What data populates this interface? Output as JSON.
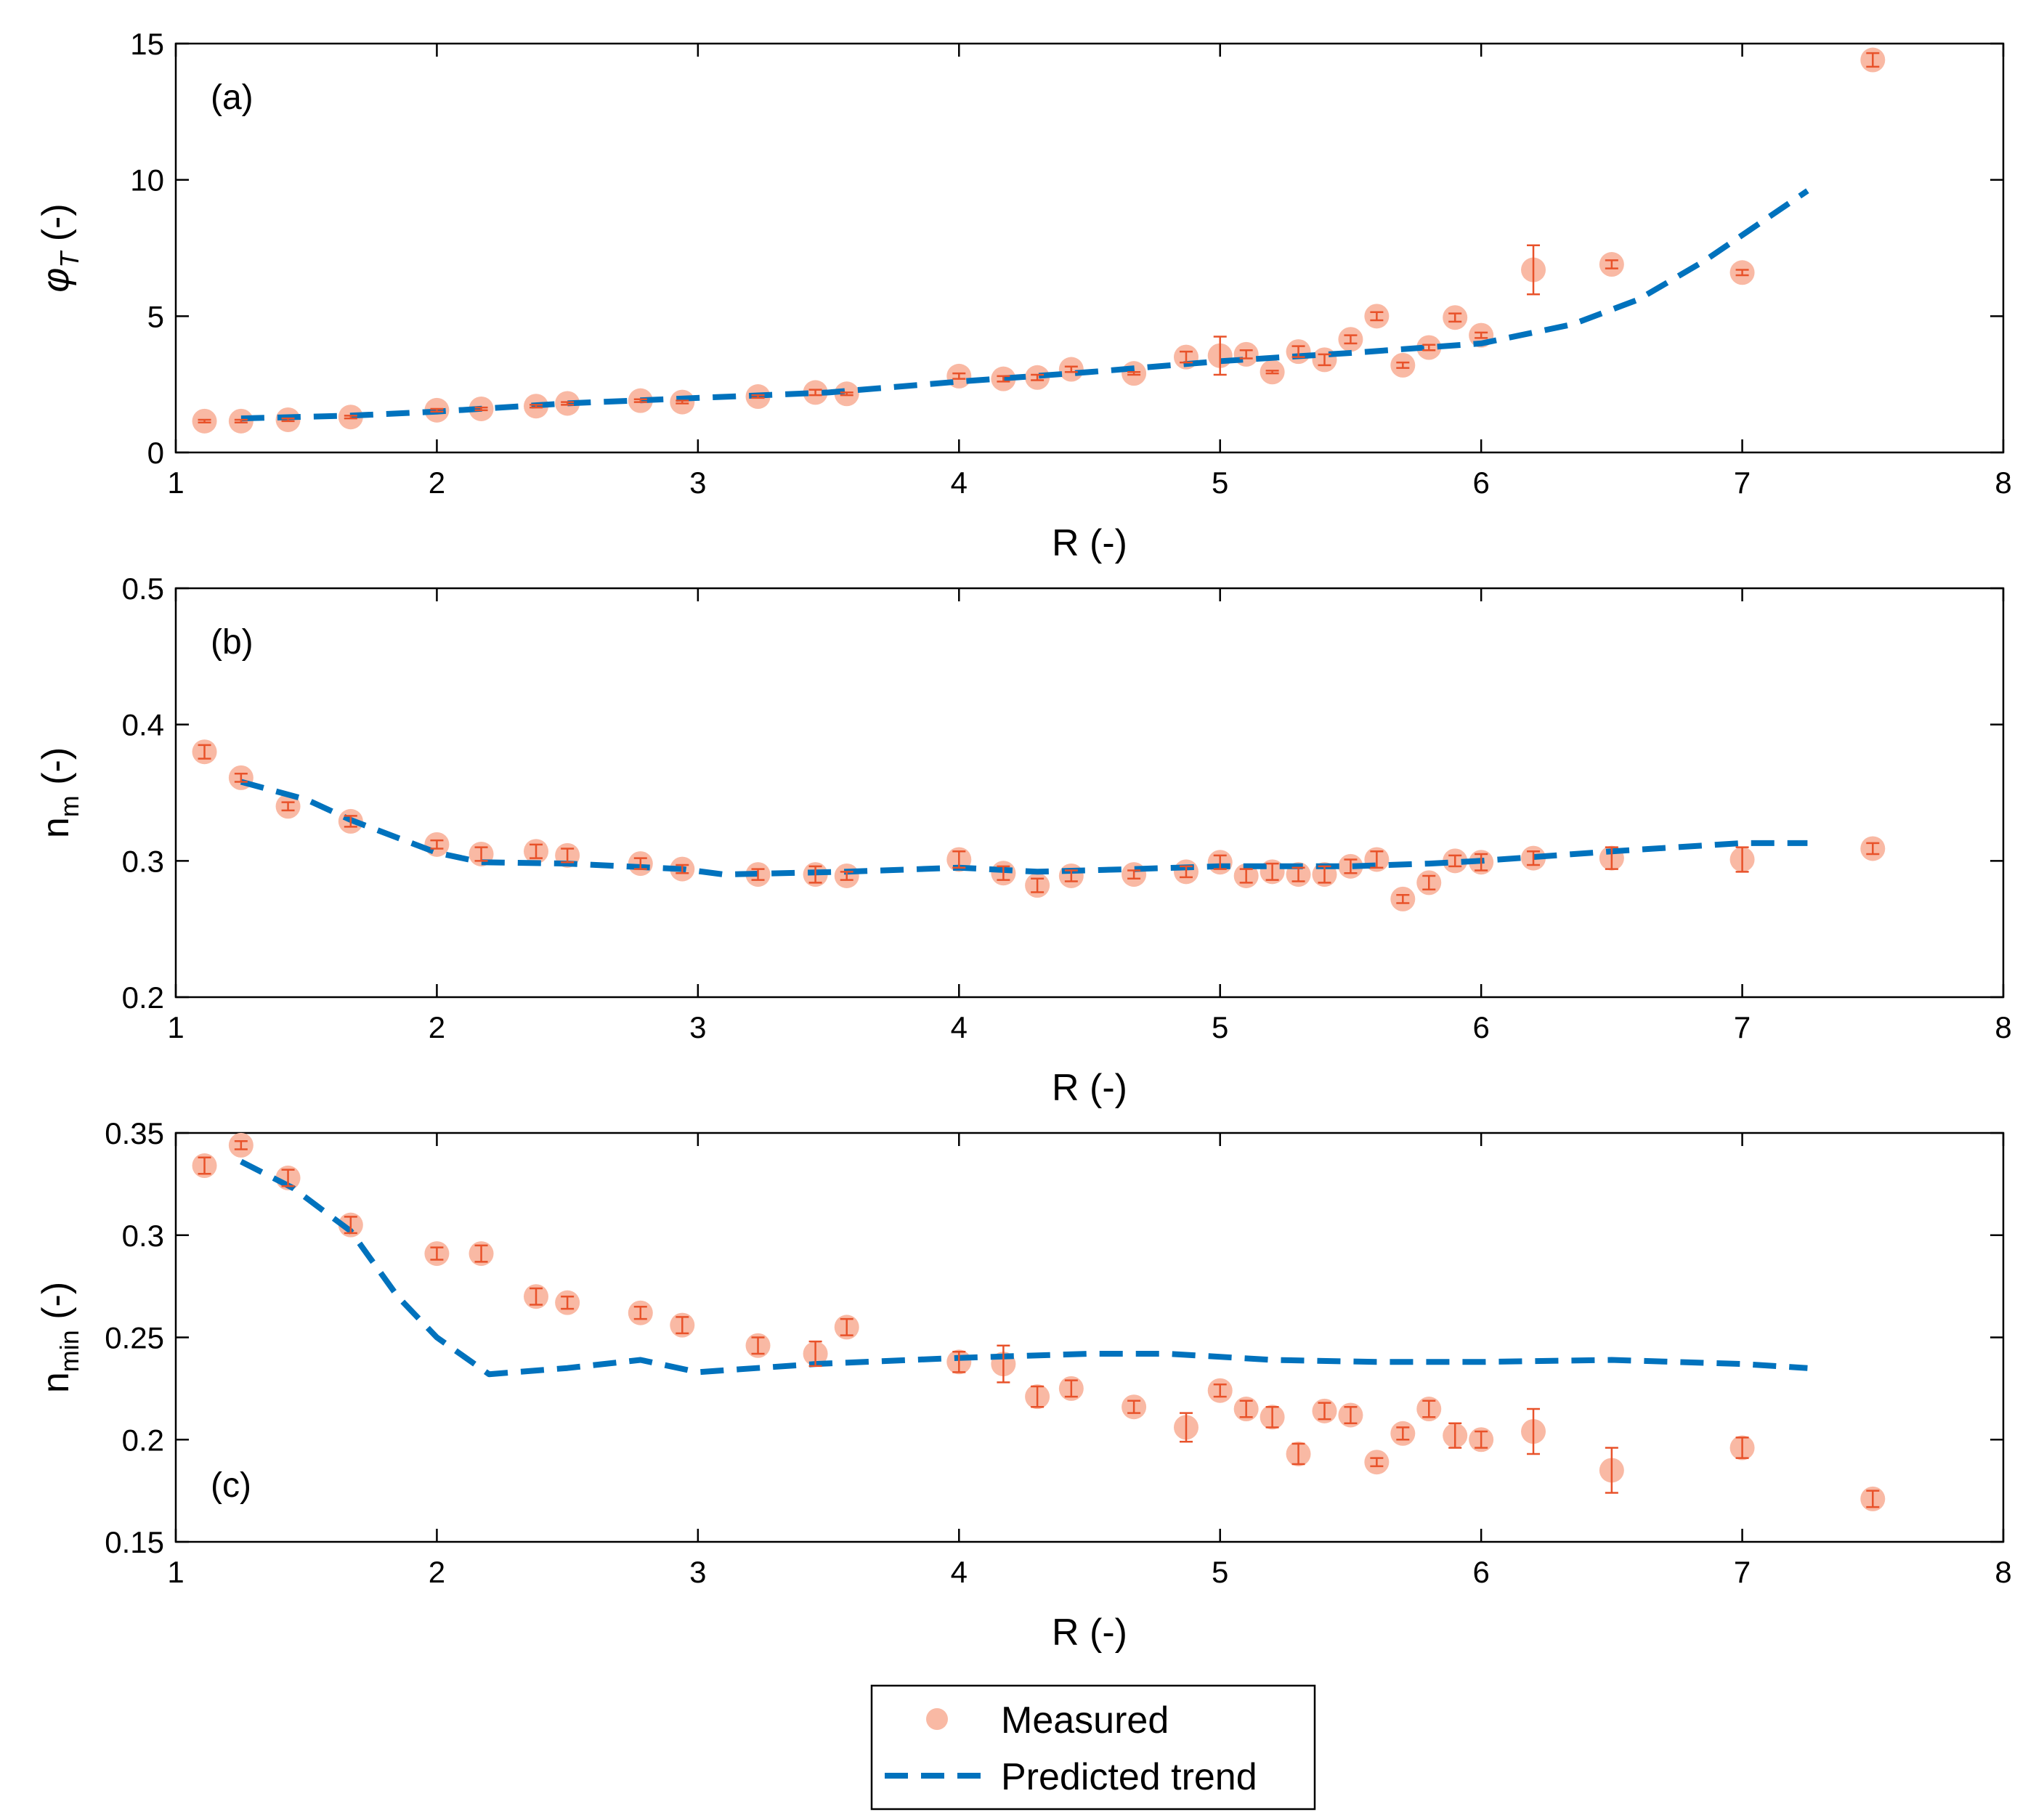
{
  "chart_data": [
    {
      "type": "scatter",
      "panel_label": "(a)",
      "xlabel": "R (-)",
      "ylabel_main": "φ",
      "ylabel_sub": "T",
      "ylabel_suffix": " (-)",
      "xlim": [
        1,
        8
      ],
      "ylim": [
        0,
        15
      ],
      "xticks": [
        1,
        2,
        3,
        4,
        5,
        6,
        7,
        8
      ],
      "yticks": [
        0,
        5,
        10,
        15
      ],
      "measured": [
        {
          "x": 1.11,
          "y": 1.15,
          "err": 0.05
        },
        {
          "x": 1.25,
          "y": 1.15,
          "err": 0.05
        },
        {
          "x": 1.43,
          "y": 1.2,
          "err": 0.05
        },
        {
          "x": 1.67,
          "y": 1.3,
          "err": 0.05
        },
        {
          "x": 2.0,
          "y": 1.55,
          "err": 0.05
        },
        {
          "x": 2.17,
          "y": 1.6,
          "err": 0.05
        },
        {
          "x": 2.38,
          "y": 1.7,
          "err": 0.05
        },
        {
          "x": 2.5,
          "y": 1.8,
          "err": 0.05
        },
        {
          "x": 2.78,
          "y": 1.9,
          "err": 0.05
        },
        {
          "x": 2.94,
          "y": 1.85,
          "err": 0.05
        },
        {
          "x": 3.23,
          "y": 2.05,
          "err": 0.05
        },
        {
          "x": 3.45,
          "y": 2.2,
          "err": 0.1
        },
        {
          "x": 3.57,
          "y": 2.15,
          "err": 0.05
        },
        {
          "x": 4.0,
          "y": 2.8,
          "err": 0.1
        },
        {
          "x": 4.17,
          "y": 2.7,
          "err": 0.1
        },
        {
          "x": 4.3,
          "y": 2.75,
          "err": 0.1
        },
        {
          "x": 4.43,
          "y": 3.05,
          "err": 0.1
        },
        {
          "x": 4.67,
          "y": 2.9,
          "err": 0.05
        },
        {
          "x": 4.87,
          "y": 3.5,
          "err": 0.2
        },
        {
          "x": 5.0,
          "y": 3.55,
          "err": 0.7
        },
        {
          "x": 5.1,
          "y": 3.6,
          "err": 0.15
        },
        {
          "x": 5.2,
          "y": 2.95,
          "err": 0.05
        },
        {
          "x": 5.3,
          "y": 3.7,
          "err": 0.2
        },
        {
          "x": 5.4,
          "y": 3.4,
          "err": 0.2
        },
        {
          "x": 5.5,
          "y": 4.15,
          "err": 0.15
        },
        {
          "x": 5.6,
          "y": 5.0,
          "err": 0.15
        },
        {
          "x": 5.7,
          "y": 3.2,
          "err": 0.1
        },
        {
          "x": 5.8,
          "y": 3.85,
          "err": 0.1
        },
        {
          "x": 5.9,
          "y": 4.95,
          "err": 0.15
        },
        {
          "x": 6.0,
          "y": 4.3,
          "err": 0.1
        },
        {
          "x": 6.2,
          "y": 6.7,
          "err": 0.9
        },
        {
          "x": 6.5,
          "y": 6.9,
          "err": 0.15
        },
        {
          "x": 7.0,
          "y": 6.6,
          "err": 0.1
        },
        {
          "x": 7.5,
          "y": 14.4,
          "err": 0.25
        }
      ],
      "predicted": [
        [
          1.25,
          1.25
        ],
        [
          1.67,
          1.35
        ],
        [
          2.0,
          1.5
        ],
        [
          2.5,
          1.8
        ],
        [
          3.0,
          2.0
        ],
        [
          3.5,
          2.2
        ],
        [
          4.0,
          2.6
        ],
        [
          4.5,
          2.95
        ],
        [
          5.0,
          3.35
        ],
        [
          5.5,
          3.65
        ],
        [
          6.0,
          4.0
        ],
        [
          6.35,
          4.7
        ],
        [
          6.6,
          5.6
        ],
        [
          6.85,
          7.0
        ],
        [
          7.25,
          9.6
        ]
      ]
    },
    {
      "type": "scatter",
      "panel_label": "(b)",
      "xlabel": "R (-)",
      "ylabel_main": "n",
      "ylabel_sub": "m",
      "ylabel_suffix": " (-)",
      "xlim": [
        1,
        8
      ],
      "ylim": [
        0.2,
        0.5
      ],
      "xticks": [
        1,
        2,
        3,
        4,
        5,
        6,
        7,
        8
      ],
      "yticks": [
        0.2,
        0.3,
        0.4,
        0.5
      ],
      "measured": [
        {
          "x": 1.11,
          "y": 0.38,
          "err": 0.005
        },
        {
          "x": 1.25,
          "y": 0.361,
          "err": 0.003
        },
        {
          "x": 1.43,
          "y": 0.34,
          "err": 0.003
        },
        {
          "x": 1.67,
          "y": 0.329,
          "err": 0.004
        },
        {
          "x": 2.0,
          "y": 0.312,
          "err": 0.003
        },
        {
          "x": 2.17,
          "y": 0.305,
          "err": 0.005
        },
        {
          "x": 2.38,
          "y": 0.307,
          "err": 0.005
        },
        {
          "x": 2.5,
          "y": 0.304,
          "err": 0.005
        },
        {
          "x": 2.78,
          "y": 0.298,
          "err": 0.004
        },
        {
          "x": 2.94,
          "y": 0.294,
          "err": 0.003
        },
        {
          "x": 3.23,
          "y": 0.29,
          "err": 0.004
        },
        {
          "x": 3.45,
          "y": 0.29,
          "err": 0.006
        },
        {
          "x": 3.57,
          "y": 0.289,
          "err": 0.003
        },
        {
          "x": 4.0,
          "y": 0.301,
          "err": 0.006
        },
        {
          "x": 4.17,
          "y": 0.291,
          "err": 0.005
        },
        {
          "x": 4.3,
          "y": 0.282,
          "err": 0.005
        },
        {
          "x": 4.43,
          "y": 0.289,
          "err": 0.004
        },
        {
          "x": 4.67,
          "y": 0.29,
          "err": 0.003
        },
        {
          "x": 4.87,
          "y": 0.292,
          "err": 0.004
        },
        {
          "x": 5.0,
          "y": 0.299,
          "err": 0.005
        },
        {
          "x": 5.1,
          "y": 0.289,
          "err": 0.005
        },
        {
          "x": 5.2,
          "y": 0.292,
          "err": 0.006
        },
        {
          "x": 5.3,
          "y": 0.29,
          "err": 0.005
        },
        {
          "x": 5.4,
          "y": 0.29,
          "err": 0.006
        },
        {
          "x": 5.5,
          "y": 0.296,
          "err": 0.005
        },
        {
          "x": 5.6,
          "y": 0.301,
          "err": 0.006
        },
        {
          "x": 5.7,
          "y": 0.272,
          "err": 0.003
        },
        {
          "x": 5.8,
          "y": 0.284,
          "err": 0.005
        },
        {
          "x": 5.9,
          "y": 0.3,
          "err": 0.004
        },
        {
          "x": 6.0,
          "y": 0.299,
          "err": 0.006
        },
        {
          "x": 6.2,
          "y": 0.302,
          "err": 0.005
        },
        {
          "x": 6.5,
          "y": 0.302,
          "err": 0.008
        },
        {
          "x": 7.0,
          "y": 0.301,
          "err": 0.009
        },
        {
          "x": 7.5,
          "y": 0.309,
          "err": 0.004
        }
      ],
      "predicted": [
        [
          1.25,
          0.358
        ],
        [
          1.5,
          0.345
        ],
        [
          1.67,
          0.33
        ],
        [
          2.0,
          0.306
        ],
        [
          2.17,
          0.299
        ],
        [
          2.5,
          0.298
        ],
        [
          2.94,
          0.294
        ],
        [
          3.1,
          0.29
        ],
        [
          3.57,
          0.292
        ],
        [
          4.0,
          0.295
        ],
        [
          4.3,
          0.292
        ],
        [
          4.67,
          0.294
        ],
        [
          5.0,
          0.296
        ],
        [
          5.5,
          0.296
        ],
        [
          5.8,
          0.298
        ],
        [
          6.0,
          0.3
        ],
        [
          6.5,
          0.307
        ],
        [
          7.0,
          0.313
        ],
        [
          7.25,
          0.313
        ]
      ]
    },
    {
      "type": "scatter",
      "panel_label": "(c)",
      "xlabel": "R (-)",
      "ylabel_main": "n",
      "ylabel_sub": "min",
      "ylabel_suffix": " (-)",
      "xlim": [
        1,
        8
      ],
      "ylim": [
        0.15,
        0.35
      ],
      "xticks": [
        1,
        2,
        3,
        4,
        5,
        6,
        7,
        8
      ],
      "yticks": [
        0.15,
        0.2,
        0.25,
        0.3,
        0.35
      ],
      "measured": [
        {
          "x": 1.11,
          "y": 0.334,
          "err": 0.004
        },
        {
          "x": 1.25,
          "y": 0.344,
          "err": 0.002
        },
        {
          "x": 1.43,
          "y": 0.328,
          "err": 0.004
        },
        {
          "x": 1.67,
          "y": 0.305,
          "err": 0.004
        },
        {
          "x": 2.0,
          "y": 0.291,
          "err": 0.003
        },
        {
          "x": 2.17,
          "y": 0.291,
          "err": 0.004
        },
        {
          "x": 2.38,
          "y": 0.27,
          "err": 0.004
        },
        {
          "x": 2.5,
          "y": 0.267,
          "err": 0.003
        },
        {
          "x": 2.78,
          "y": 0.262,
          "err": 0.003
        },
        {
          "x": 2.94,
          "y": 0.256,
          "err": 0.004
        },
        {
          "x": 3.23,
          "y": 0.246,
          "err": 0.004
        },
        {
          "x": 3.45,
          "y": 0.242,
          "err": 0.006
        },
        {
          "x": 3.57,
          "y": 0.255,
          "err": 0.004
        },
        {
          "x": 4.0,
          "y": 0.238,
          "err": 0.005
        },
        {
          "x": 4.17,
          "y": 0.237,
          "err": 0.009
        },
        {
          "x": 4.3,
          "y": 0.221,
          "err": 0.005
        },
        {
          "x": 4.43,
          "y": 0.225,
          "err": 0.004
        },
        {
          "x": 4.67,
          "y": 0.216,
          "err": 0.003
        },
        {
          "x": 4.87,
          "y": 0.206,
          "err": 0.007
        },
        {
          "x": 5.0,
          "y": 0.224,
          "err": 0.003
        },
        {
          "x": 5.1,
          "y": 0.215,
          "err": 0.004
        },
        {
          "x": 5.2,
          "y": 0.211,
          "err": 0.005
        },
        {
          "x": 5.3,
          "y": 0.193,
          "err": 0.005
        },
        {
          "x": 5.4,
          "y": 0.214,
          "err": 0.004
        },
        {
          "x": 5.5,
          "y": 0.212,
          "err": 0.004
        },
        {
          "x": 5.6,
          "y": 0.189,
          "err": 0.002
        },
        {
          "x": 5.7,
          "y": 0.203,
          "err": 0.003
        },
        {
          "x": 5.8,
          "y": 0.215,
          "err": 0.004
        },
        {
          "x": 5.9,
          "y": 0.202,
          "err": 0.006
        },
        {
          "x": 6.0,
          "y": 0.2,
          "err": 0.004
        },
        {
          "x": 6.2,
          "y": 0.204,
          "err": 0.011
        },
        {
          "x": 6.5,
          "y": 0.185,
          "err": 0.011
        },
        {
          "x": 7.0,
          "y": 0.196,
          "err": 0.005
        },
        {
          "x": 7.5,
          "y": 0.171,
          "err": 0.004
        }
      ],
      "predicted": [
        [
          1.25,
          0.336
        ],
        [
          1.45,
          0.323
        ],
        [
          1.67,
          0.302
        ],
        [
          1.85,
          0.27
        ],
        [
          2.0,
          0.25
        ],
        [
          2.2,
          0.232
        ],
        [
          2.5,
          0.235
        ],
        [
          2.78,
          0.239
        ],
        [
          3.0,
          0.233
        ],
        [
          3.45,
          0.237
        ],
        [
          4.0,
          0.24
        ],
        [
          4.5,
          0.242
        ],
        [
          4.8,
          0.242
        ],
        [
          5.2,
          0.239
        ],
        [
          5.6,
          0.238
        ],
        [
          6.0,
          0.238
        ],
        [
          6.5,
          0.239
        ],
        [
          7.0,
          0.237
        ],
        [
          7.25,
          0.235
        ]
      ]
    }
  ],
  "legend": {
    "measured_label": "Measured",
    "predicted_label": "Predicted trend"
  },
  "colors": {
    "marker_fill": "#f9b9a4",
    "error_bar": "#e8522a",
    "predicted_line": "#0072bd"
  }
}
